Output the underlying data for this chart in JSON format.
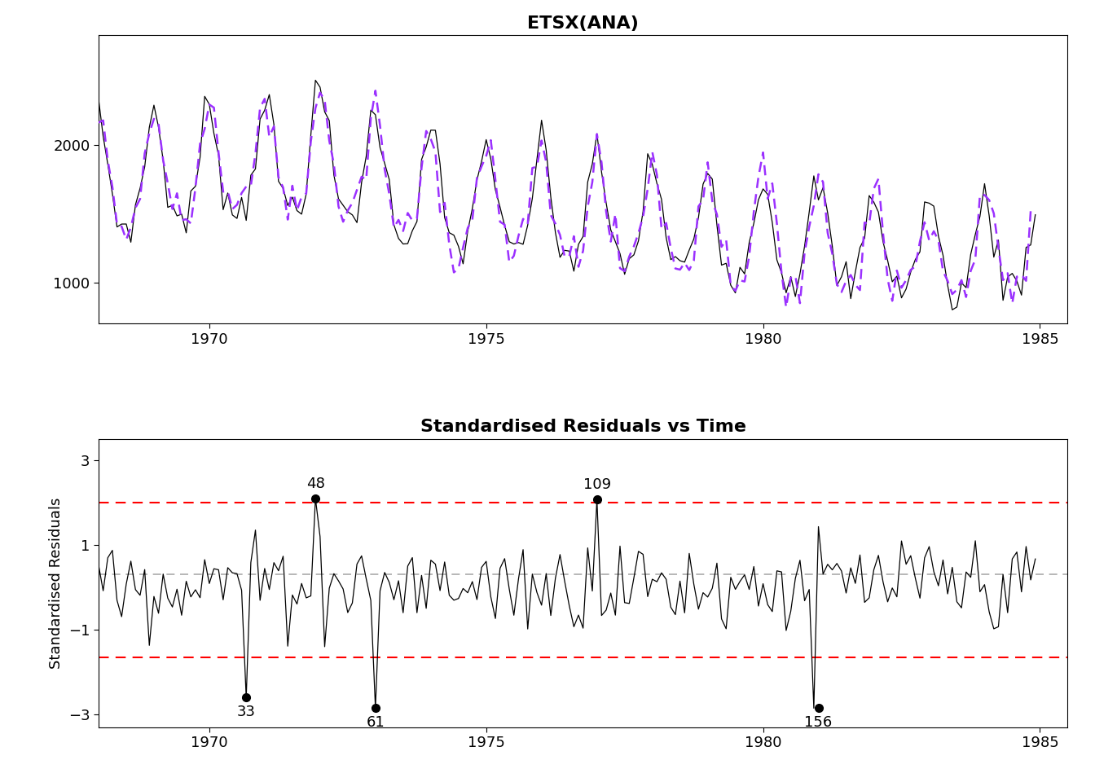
{
  "title1": "ETSX(ANA)",
  "title2": "Standardised Residuals vs Time",
  "ylabel2": "Standardised Residuals",
  "xstart": 1968.0,
  "xend": 1985.5,
  "ylim1": [
    700,
    2800
  ],
  "ylim2": [
    -3.3,
    3.5
  ],
  "yticks1": [
    1000,
    2000
  ],
  "yticks2": [
    -3,
    -1,
    1,
    3
  ],
  "xticks": [
    1970,
    1975,
    1980,
    1985
  ],
  "hline_mean": 0.3,
  "hline_upper": 2.0,
  "hline_lower": -1.65,
  "outliers_above": {
    "48": [
      1971.92,
      2.1
    ],
    "109": [
      1977.0,
      2.07
    ]
  },
  "outliers_below": {
    "33": [
      1970.67,
      -2.6
    ],
    "61": [
      1973.0,
      -2.85
    ],
    "156": [
      1981.0,
      -2.85
    ]
  },
  "black_color": "#000000",
  "purple_color": "#9B30FF",
  "red_color": "#FF0000",
  "gray_color": "#AAAAAA",
  "title_fontsize": 16,
  "axis_fontsize": 13,
  "tick_fontsize": 13
}
